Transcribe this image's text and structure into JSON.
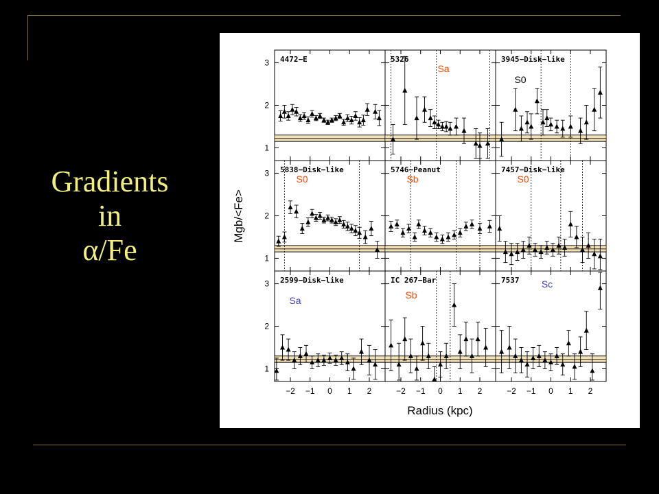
{
  "slide": {
    "title_lines": [
      "Gradients",
      "in",
      "α/Fe"
    ],
    "title_color": "#f2ef7e",
    "background": "#000000",
    "rule_color": "#8a7040"
  },
  "chart_data": {
    "type": "scatter",
    "layout": "3x3 panel grid",
    "xlabel": "Radius (kpc)",
    "ylabel": "Mgb/<Fe>",
    "xlim": [
      -2.8,
      2.8
    ],
    "ylim": [
      0.7,
      3.3
    ],
    "xticks": [
      -2,
      -1,
      0,
      1,
      2
    ],
    "yticks": [
      1,
      2,
      3
    ],
    "reference_band": {
      "y_values": [
        1.15,
        1.22,
        1.3
      ],
      "color": "#e8c87a"
    },
    "marker": "filled triangle with error bars",
    "panels": [
      {
        "id": "4472",
        "label": "4472−E",
        "type": "",
        "type_color": "",
        "vlines": [],
        "points": [
          {
            "x": -2.5,
            "y": 1.75,
            "e": 0.12
          },
          {
            "x": -2.3,
            "y": 1.85,
            "e": 0.15
          },
          {
            "x": -2.1,
            "y": 1.75,
            "e": 0.1
          },
          {
            "x": -1.9,
            "y": 1.9,
            "e": 0.12
          },
          {
            "x": -1.7,
            "y": 1.85,
            "e": 0.1
          },
          {
            "x": -1.5,
            "y": 1.7,
            "e": 0.08
          },
          {
            "x": -1.3,
            "y": 1.75,
            "e": 0.08
          },
          {
            "x": -1.1,
            "y": 1.65,
            "e": 0.08
          },
          {
            "x": -0.9,
            "y": 1.8,
            "e": 0.08
          },
          {
            "x": -0.7,
            "y": 1.7,
            "e": 0.06
          },
          {
            "x": -0.5,
            "y": 1.75,
            "e": 0.06
          },
          {
            "x": -0.3,
            "y": 1.65,
            "e": 0.05
          },
          {
            "x": -0.1,
            "y": 1.6,
            "e": 0.05
          },
          {
            "x": 0.1,
            "y": 1.65,
            "e": 0.05
          },
          {
            "x": 0.3,
            "y": 1.7,
            "e": 0.06
          },
          {
            "x": 0.5,
            "y": 1.75,
            "e": 0.06
          },
          {
            "x": 0.7,
            "y": 1.6,
            "e": 0.07
          },
          {
            "x": 0.9,
            "y": 1.7,
            "e": 0.08
          },
          {
            "x": 1.1,
            "y": 1.65,
            "e": 0.09
          },
          {
            "x": 1.3,
            "y": 1.75,
            "e": 0.1
          },
          {
            "x": 1.5,
            "y": 1.6,
            "e": 0.11
          },
          {
            "x": 1.7,
            "y": 1.65,
            "e": 0.12
          },
          {
            "x": 1.9,
            "y": 1.9,
            "e": 0.14
          },
          {
            "x": 2.3,
            "y": 1.85,
            "e": 0.17
          },
          {
            "x": 2.5,
            "y": 1.7,
            "e": 0.18
          }
        ]
      },
      {
        "id": "5326",
        "label": "5326",
        "type": "Sa",
        "type_color": "#ff4400",
        "vlines": [
          -2.5,
          -0.2,
          2.5
        ],
        "points": [
          {
            "x": -2.4,
            "y": 1.2,
            "e": 0.35
          },
          {
            "x": -1.8,
            "y": 2.35,
            "e": 0.8
          },
          {
            "x": -1.2,
            "y": 1.7,
            "e": 0.5
          },
          {
            "x": -0.8,
            "y": 1.9,
            "e": 0.3
          },
          {
            "x": -0.5,
            "y": 1.7,
            "e": 0.2
          },
          {
            "x": -0.3,
            "y": 1.6,
            "e": 0.15
          },
          {
            "x": -0.1,
            "y": 1.55,
            "e": 0.1
          },
          {
            "x": 0.1,
            "y": 1.5,
            "e": 0.1
          },
          {
            "x": 0.3,
            "y": 1.5,
            "e": 0.12
          },
          {
            "x": 0.5,
            "y": 1.45,
            "e": 0.15
          },
          {
            "x": 0.8,
            "y": 1.5,
            "e": 0.2
          },
          {
            "x": 1.2,
            "y": 1.4,
            "e": 0.3
          },
          {
            "x": 1.8,
            "y": 1.1,
            "e": 0.35
          },
          {
            "x": 2.0,
            "y": 1.05,
            "e": 0.3
          },
          {
            "x": 2.4,
            "y": 1.1,
            "e": 0.35
          }
        ]
      },
      {
        "id": "3945",
        "label": "3945−Disk−like",
        "type": "S0",
        "type_color": "#000000",
        "vlines": [
          -0.5,
          1.0
        ],
        "points": [
          {
            "x": -2.5,
            "y": 1.2,
            "e": 0.4
          },
          {
            "x": -1.8,
            "y": 1.9,
            "e": 0.5
          },
          {
            "x": -1.5,
            "y": 1.45,
            "e": 0.3
          },
          {
            "x": -1.2,
            "y": 1.6,
            "e": 0.25
          },
          {
            "x": -1.0,
            "y": 1.5,
            "e": 0.3
          },
          {
            "x": -0.7,
            "y": 2.1,
            "e": 0.3
          },
          {
            "x": -0.4,
            "y": 1.6,
            "e": 0.3
          },
          {
            "x": -0.2,
            "y": 1.7,
            "e": 0.2
          },
          {
            "x": 0.0,
            "y": 1.55,
            "e": 0.15
          },
          {
            "x": 0.3,
            "y": 1.5,
            "e": 0.15
          },
          {
            "x": 0.6,
            "y": 1.45,
            "e": 0.2
          },
          {
            "x": 1.0,
            "y": 1.5,
            "e": 0.25
          },
          {
            "x": 1.5,
            "y": 1.4,
            "e": 0.3
          },
          {
            "x": 1.8,
            "y": 1.6,
            "e": 0.4
          },
          {
            "x": 2.2,
            "y": 1.9,
            "e": 0.5
          },
          {
            "x": 2.5,
            "y": 2.3,
            "e": 0.6
          }
        ]
      },
      {
        "id": "5838",
        "label": "5838−Disk−like",
        "type": "S0",
        "type_color": "#ff4400",
        "vlines": [
          -2.3,
          1.5
        ],
        "points": [
          {
            "x": -2.6,
            "y": 1.4,
            "e": 0.12
          },
          {
            "x": -2.3,
            "y": 1.5,
            "e": 0.12
          },
          {
            "x": -2.0,
            "y": 2.2,
            "e": 0.15
          },
          {
            "x": -1.7,
            "y": 2.1,
            "e": 0.15
          },
          {
            "x": -1.4,
            "y": 1.7,
            "e": 0.12
          },
          {
            "x": -1.1,
            "y": 1.85,
            "e": 0.1
          },
          {
            "x": -0.9,
            "y": 2.05,
            "e": 0.1
          },
          {
            "x": -0.7,
            "y": 1.95,
            "e": 0.08
          },
          {
            "x": -0.5,
            "y": 2.0,
            "e": 0.08
          },
          {
            "x": -0.3,
            "y": 1.9,
            "e": 0.07
          },
          {
            "x": -0.1,
            "y": 1.95,
            "e": 0.07
          },
          {
            "x": 0.1,
            "y": 1.9,
            "e": 0.07
          },
          {
            "x": 0.3,
            "y": 1.85,
            "e": 0.08
          },
          {
            "x": 0.5,
            "y": 1.9,
            "e": 0.08
          },
          {
            "x": 0.7,
            "y": 1.8,
            "e": 0.09
          },
          {
            "x": 0.9,
            "y": 1.75,
            "e": 0.1
          },
          {
            "x": 1.1,
            "y": 1.7,
            "e": 0.1
          },
          {
            "x": 1.3,
            "y": 1.65,
            "e": 0.12
          },
          {
            "x": 1.5,
            "y": 1.6,
            "e": 0.13
          },
          {
            "x": 1.8,
            "y": 1.5,
            "e": 0.15
          },
          {
            "x": 2.1,
            "y": 1.7,
            "e": 0.17
          },
          {
            "x": 2.4,
            "y": 1.2,
            "e": 0.2
          }
        ]
      },
      {
        "id": "5746",
        "label": "5746−Peanut",
        "type": "Sb",
        "type_color": "#ff4400",
        "vlines": [
          -1.5,
          0.8,
          2.0
        ],
        "points": [
          {
            "x": -2.5,
            "y": 1.75,
            "e": 0.12
          },
          {
            "x": -2.2,
            "y": 1.8,
            "e": 0.1
          },
          {
            "x": -1.9,
            "y": 1.6,
            "e": 0.1
          },
          {
            "x": -1.6,
            "y": 1.7,
            "e": 0.1
          },
          {
            "x": -1.3,
            "y": 1.5,
            "e": 0.1
          },
          {
            "x": -1.1,
            "y": 1.8,
            "e": 0.1
          },
          {
            "x": -0.8,
            "y": 1.65,
            "e": 0.1
          },
          {
            "x": -0.5,
            "y": 1.6,
            "e": 0.1
          },
          {
            "x": -0.2,
            "y": 1.5,
            "e": 0.1
          },
          {
            "x": 0.1,
            "y": 1.45,
            "e": 0.1
          },
          {
            "x": 0.4,
            "y": 1.5,
            "e": 0.1
          },
          {
            "x": 0.7,
            "y": 1.55,
            "e": 0.1
          },
          {
            "x": 1.0,
            "y": 1.6,
            "e": 0.1
          },
          {
            "x": 1.3,
            "y": 1.75,
            "e": 0.1
          },
          {
            "x": 1.6,
            "y": 1.8,
            "e": 0.1
          },
          {
            "x": 2.0,
            "y": 1.7,
            "e": 0.12
          },
          {
            "x": 2.5,
            "y": 1.75,
            "e": 0.14
          }
        ]
      },
      {
        "id": "7457",
        "label": "7457−Disk−like",
        "type": "S0",
        "type_color": "#ff4400",
        "vlines": [
          -1.0,
          0.5,
          1.6
        ],
        "points": [
          {
            "x": -2.6,
            "y": 1.7,
            "e": 0.3
          },
          {
            "x": -2.3,
            "y": 1.15,
            "e": 0.25
          },
          {
            "x": -2.0,
            "y": 1.1,
            "e": 0.25
          },
          {
            "x": -1.7,
            "y": 1.15,
            "e": 0.2
          },
          {
            "x": -1.4,
            "y": 1.2,
            "e": 0.2
          },
          {
            "x": -1.1,
            "y": 1.3,
            "e": 0.2
          },
          {
            "x": -0.8,
            "y": 1.2,
            "e": 0.15
          },
          {
            "x": -0.5,
            "y": 1.15,
            "e": 0.15
          },
          {
            "x": -0.2,
            "y": 1.25,
            "e": 0.15
          },
          {
            "x": 0.1,
            "y": 1.2,
            "e": 0.15
          },
          {
            "x": 0.4,
            "y": 1.3,
            "e": 0.2
          },
          {
            "x": 0.7,
            "y": 1.25,
            "e": 0.2
          },
          {
            "x": 1.0,
            "y": 1.8,
            "e": 0.3
          },
          {
            "x": 1.3,
            "y": 1.5,
            "e": 0.25
          },
          {
            "x": 1.6,
            "y": 1.2,
            "e": 0.3
          },
          {
            "x": 1.9,
            "y": 1.3,
            "e": 0.3
          },
          {
            "x": 2.2,
            "y": 1.1,
            "e": 0.35
          },
          {
            "x": 2.5,
            "y": 1.05,
            "e": 0.4
          }
        ]
      },
      {
        "id": "2599",
        "label": "2599−Disk−like",
        "type": "Sa",
        "type_color": "#4040c0",
        "vlines": [],
        "points": [
          {
            "x": -2.7,
            "y": 0.95,
            "e": 0.3
          },
          {
            "x": -2.4,
            "y": 1.5,
            "e": 0.3
          },
          {
            "x": -2.1,
            "y": 1.45,
            "e": 0.25
          },
          {
            "x": -1.8,
            "y": 1.2,
            "e": 0.2
          },
          {
            "x": -1.5,
            "y": 1.3,
            "e": 0.2
          },
          {
            "x": -1.2,
            "y": 1.35,
            "e": 0.2
          },
          {
            "x": -0.9,
            "y": 1.15,
            "e": 0.15
          },
          {
            "x": -0.6,
            "y": 1.2,
            "e": 0.15
          },
          {
            "x": -0.3,
            "y": 1.2,
            "e": 0.12
          },
          {
            "x": 0.0,
            "y": 1.25,
            "e": 0.12
          },
          {
            "x": 0.3,
            "y": 1.2,
            "e": 0.12
          },
          {
            "x": 0.6,
            "y": 1.25,
            "e": 0.15
          },
          {
            "x": 0.9,
            "y": 1.15,
            "e": 0.2
          },
          {
            "x": 1.2,
            "y": 1.0,
            "e": 0.25
          },
          {
            "x": 1.6,
            "y": 1.4,
            "e": 0.3
          },
          {
            "x": 2.0,
            "y": 1.2,
            "e": 0.35
          },
          {
            "x": 2.3,
            "y": 1.1,
            "e": 0.35
          }
        ]
      },
      {
        "id": "IC267",
        "label": "IC 267−Bar",
        "type": "Sb",
        "type_color": "#ff4400",
        "vlines": [
          -0.2,
          0.5
        ],
        "points": [
          {
            "x": -2.5,
            "y": 1.55,
            "e": 0.6
          },
          {
            "x": -2.1,
            "y": 1.1,
            "e": 0.5
          },
          {
            "x": -1.8,
            "y": 1.7,
            "e": 0.5
          },
          {
            "x": -1.5,
            "y": 1.3,
            "e": 0.4
          },
          {
            "x": -1.2,
            "y": 1.0,
            "e": 0.3
          },
          {
            "x": -0.9,
            "y": 1.6,
            "e": 0.4
          },
          {
            "x": -0.6,
            "y": 1.3,
            "e": 0.3
          },
          {
            "x": -0.3,
            "y": 0.75,
            "e": 0.3
          },
          {
            "x": 0.0,
            "y": 1.1,
            "e": 0.3
          },
          {
            "x": 0.3,
            "y": 1.3,
            "e": 0.3
          },
          {
            "x": 0.7,
            "y": 2.5,
            "e": 0.5
          },
          {
            "x": 1.0,
            "y": 1.4,
            "e": 0.4
          },
          {
            "x": 1.3,
            "y": 1.7,
            "e": 0.4
          },
          {
            "x": 1.6,
            "y": 1.3,
            "e": 0.4
          },
          {
            "x": 1.9,
            "y": 1.7,
            "e": 0.4
          },
          {
            "x": 2.3,
            "y": 1.5,
            "e": 0.45
          }
        ]
      },
      {
        "id": "7537",
        "label": "7537",
        "type": "Sc",
        "type_color": "#4040c0",
        "vlines": [],
        "points": [
          {
            "x": -2.5,
            "y": 1.4,
            "e": 0.5
          },
          {
            "x": -2.1,
            "y": 1.5,
            "e": 0.5
          },
          {
            "x": -1.8,
            "y": 1.3,
            "e": 0.4
          },
          {
            "x": -1.5,
            "y": 1.2,
            "e": 0.3
          },
          {
            "x": -1.2,
            "y": 1.1,
            "e": 0.3
          },
          {
            "x": -0.9,
            "y": 1.25,
            "e": 0.25
          },
          {
            "x": -0.6,
            "y": 1.3,
            "e": 0.25
          },
          {
            "x": -0.3,
            "y": 1.2,
            "e": 0.2
          },
          {
            "x": 0.0,
            "y": 1.15,
            "e": 0.2
          },
          {
            "x": 0.3,
            "y": 1.3,
            "e": 0.2
          },
          {
            "x": 0.6,
            "y": 1.1,
            "e": 0.25
          },
          {
            "x": 0.9,
            "y": 1.6,
            "e": 0.3
          },
          {
            "x": 1.2,
            "y": 1.05,
            "e": 0.3
          },
          {
            "x": 1.5,
            "y": 1.4,
            "e": 0.35
          },
          {
            "x": 1.8,
            "y": 1.9,
            "e": 0.45
          },
          {
            "x": 2.1,
            "y": 0.95,
            "e": 0.4
          },
          {
            "x": 2.5,
            "y": 2.9,
            "e": 0.5
          }
        ]
      }
    ]
  }
}
